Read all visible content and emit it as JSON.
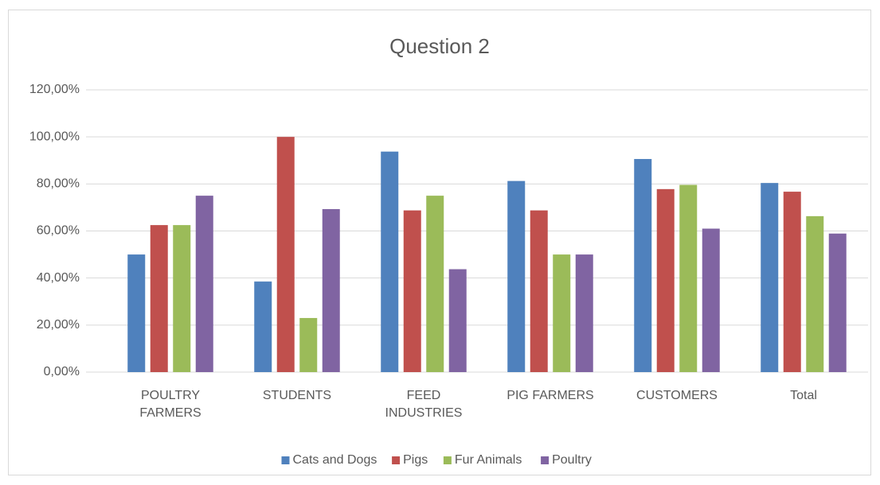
{
  "chart_data": {
    "type": "bar",
    "title": "Question 2",
    "categories": [
      "POULTRY FARMERS",
      "STUDENTS",
      "FEED INDUSTRIES",
      "PIG FARMERS",
      "CUSTOMERS",
      "Total"
    ],
    "series": [
      {
        "name": "Cats and Dogs",
        "color": "#4f81bd",
        "values": [
          50,
          38.5,
          93.75,
          81.25,
          90.6,
          80.4
        ]
      },
      {
        "name": "Pigs",
        "color": "#c0504d",
        "values": [
          62.5,
          100,
          68.75,
          68.75,
          77.8,
          76.7
        ]
      },
      {
        "name": "Fur Animals",
        "color": "#9bbb59",
        "values": [
          62.5,
          23,
          75,
          50,
          79.6,
          66.3
        ]
      },
      {
        "name": "Poultry",
        "color": "#8064a2",
        "values": [
          75,
          69.3,
          43.75,
          50,
          61,
          58.9
        ]
      }
    ],
    "ylim": [
      0,
      120
    ],
    "yticks": [
      {
        "value": 0,
        "label": "0,00%"
      },
      {
        "value": 20,
        "label": "20,00%"
      },
      {
        "value": 40,
        "label": "40,00%"
      },
      {
        "value": 60,
        "label": "60,00%"
      },
      {
        "value": 80,
        "label": "80,00%"
      },
      {
        "value": 100,
        "label": "100,00%"
      },
      {
        "value": 120,
        "label": "120,00%"
      }
    ],
    "grid": true,
    "legend": "bottom"
  }
}
